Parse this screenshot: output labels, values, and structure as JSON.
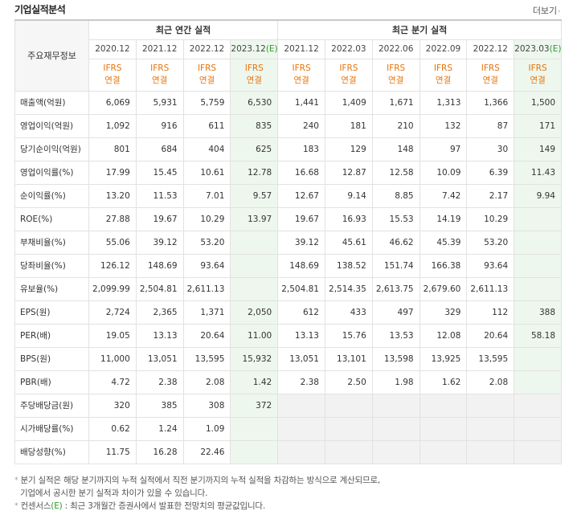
{
  "header": {
    "title": "기업실적분석",
    "more_label": "더보기",
    "more_arrow": "›"
  },
  "table": {
    "row_header_label": "주요재무정보",
    "annual_group_label": "최근 연간 실적",
    "quarter_group_label": "최근 분기 실적",
    "periods": [
      {
        "label": "2020.12",
        "estimate": false,
        "type1": "IFRS",
        "type2": "연결"
      },
      {
        "label": "2021.12",
        "estimate": false,
        "type1": "IFRS",
        "type2": "연결"
      },
      {
        "label": "2022.12",
        "estimate": false,
        "type1": "IFRS",
        "type2": "연결"
      },
      {
        "label": "2023.12",
        "estimate": true,
        "estimate_mark": "(E)",
        "type1": "IFRS",
        "type2": "연결"
      },
      {
        "label": "2021.12",
        "estimate": false,
        "type1": "IFRS",
        "type2": "연결"
      },
      {
        "label": "2022.03",
        "estimate": false,
        "type1": "IFRS",
        "type2": "연결"
      },
      {
        "label": "2022.06",
        "estimate": false,
        "type1": "IFRS",
        "type2": "연결"
      },
      {
        "label": "2022.09",
        "estimate": false,
        "type1": "IFRS",
        "type2": "연결"
      },
      {
        "label": "2022.12",
        "estimate": false,
        "type1": "IFRS",
        "type2": "연결"
      },
      {
        "label": "2023.03",
        "estimate": true,
        "estimate_mark": "(E)",
        "type1": "IFRS",
        "type2": "연결"
      }
    ],
    "rows": [
      {
        "label": "매출액(억원)",
        "group_start": true,
        "values": [
          "6,069",
          "5,931",
          "5,759",
          "6,530",
          "1,441",
          "1,409",
          "1,671",
          "1,313",
          "1,366",
          "1,500"
        ]
      },
      {
        "label": "영업이익(억원)",
        "values": [
          "1,092",
          "916",
          "611",
          "835",
          "240",
          "181",
          "210",
          "132",
          "87",
          "171"
        ]
      },
      {
        "label": "당기순이익(억원)",
        "values": [
          "801",
          "684",
          "404",
          "625",
          "183",
          "129",
          "148",
          "97",
          "30",
          "149"
        ]
      },
      {
        "label": "영업이익률(%)",
        "group_start": true,
        "values": [
          "17.99",
          "15.45",
          "10.61",
          "12.78",
          "16.68",
          "12.87",
          "12.58",
          "10.09",
          "6.39",
          "11.43"
        ]
      },
      {
        "label": "순이익률(%)",
        "values": [
          "13.20",
          "11.53",
          "7.01",
          "9.57",
          "12.67",
          "9.14",
          "8.85",
          "7.42",
          "2.17",
          "9.94"
        ]
      },
      {
        "label": "ROE(%)",
        "values": [
          "27.88",
          "19.67",
          "10.29",
          "13.97",
          "19.67",
          "16.93",
          "15.53",
          "14.19",
          "10.29",
          ""
        ]
      },
      {
        "label": "부채비율(%)",
        "group_start": true,
        "values": [
          "55.06",
          "39.12",
          "53.20",
          "",
          "39.12",
          "45.61",
          "46.62",
          "45.39",
          "53.20",
          ""
        ]
      },
      {
        "label": "당좌비율(%)",
        "values": [
          "126.12",
          "148.69",
          "93.64",
          "",
          "148.69",
          "138.52",
          "151.74",
          "166.38",
          "93.64",
          ""
        ]
      },
      {
        "label": "유보율(%)",
        "values": [
          "2,099.99",
          "2,504.81",
          "2,611.13",
          "",
          "2,504.81",
          "2,514.35",
          "2,613.75",
          "2,679.60",
          "2,611.13",
          ""
        ]
      },
      {
        "label": "EPS(원)",
        "group_start": true,
        "values": [
          "2,724",
          "2,365",
          "1,371",
          "2,050",
          "612",
          "433",
          "497",
          "329",
          "112",
          "388"
        ]
      },
      {
        "label": "PER(배)",
        "values": [
          "19.05",
          "13.13",
          "20.64",
          "11.00",
          "13.13",
          "15.76",
          "13.53",
          "12.08",
          "20.64",
          "58.18"
        ]
      },
      {
        "label": "BPS(원)",
        "values": [
          "11,000",
          "13,051",
          "13,595",
          "15,932",
          "13,051",
          "13,101",
          "13,598",
          "13,925",
          "13,595",
          ""
        ]
      },
      {
        "label": "PBR(배)",
        "values": [
          "4.72",
          "2.38",
          "2.08",
          "1.42",
          "2.38",
          "2.50",
          "1.98",
          "1.62",
          "2.08",
          ""
        ]
      },
      {
        "label": "주당배당금(원)",
        "group_start": true,
        "quarter_empty": true,
        "values": [
          "320",
          "385",
          "308",
          "372",
          "",
          "",
          "",
          "",
          "",
          ""
        ]
      },
      {
        "label": "시가배당률(%)",
        "quarter_empty": true,
        "values": [
          "0.62",
          "1.24",
          "1.09",
          "",
          "",
          "",
          "",
          "",
          "",
          ""
        ]
      },
      {
        "label": "배당성향(%)",
        "quarter_empty": true,
        "values": [
          "11.75",
          "16.28",
          "22.46",
          "",
          "",
          "",
          "",
          "",
          "",
          ""
        ]
      }
    ]
  },
  "notes": {
    "line1": "분기 실적은 해당 분기까지의 누적 실적에서 직전 분기까지의 누적 실적을 차감하는 방식으로 계산되므로,",
    "line2": "기업에서 공시한 분기 실적과 차이가 있을 수 있습니다.",
    "line3_pre": "컨센서스",
    "line3_mark": "(E)",
    "line3_post": " : 최근 3개월간 증권사에서 발표한 전망치의 평균값입니다."
  }
}
